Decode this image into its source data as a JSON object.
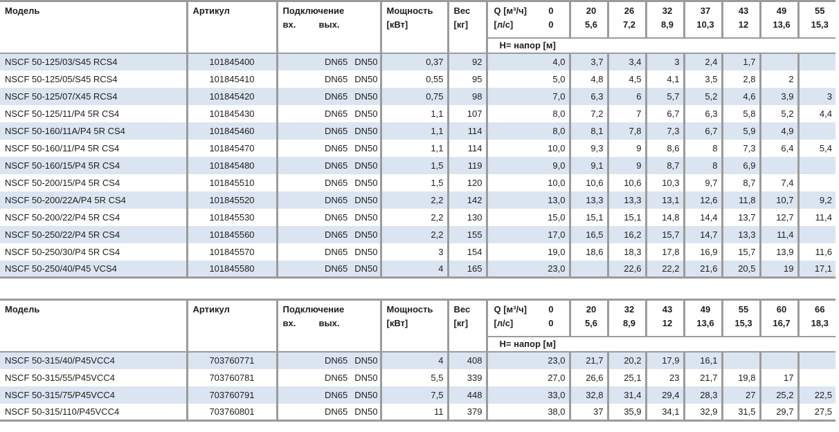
{
  "colors": {
    "row_alt": "#dbe5f1",
    "border": "#9b9b9b",
    "text": "#1d1d1b"
  },
  "tables": [
    {
      "headers": {
        "model": "Модель",
        "article": "Артикул",
        "connection": "Подключение",
        "inlet": "вх.",
        "outlet": "вых.",
        "power_l1": "Мощность",
        "power_l2": "[кВт]",
        "weight_l1": "Вес",
        "weight_l2": "[кг]",
        "q_m3h": "Q [м³/ч]",
        "q_m3h_zero": "0",
        "q_ls": "[л/с]",
        "q_ls_zero": "0",
        "head_label": "H= напор [м]"
      },
      "q_cols": [
        [
          "20",
          "5,6"
        ],
        [
          "26",
          "7,2"
        ],
        [
          "32",
          "8,9"
        ],
        [
          "37",
          "10,3"
        ],
        [
          "43",
          "12"
        ],
        [
          "49",
          "13,6"
        ],
        [
          "55",
          "15,3"
        ]
      ],
      "rows": [
        {
          "model": "NSCF 50-125/03/S45 RCS4",
          "article": "101845400",
          "inlet": "DN65",
          "outlet": "DN50",
          "power": "0,37",
          "weight": "92",
          "h": [
            "4,0",
            "3,7",
            "3,4",
            "3",
            "2,4",
            "1,7",
            "",
            ""
          ]
        },
        {
          "model": "NSCF 50-125/05/S45 RCS4",
          "article": "101845410",
          "inlet": "DN65",
          "outlet": "DN50",
          "power": "0,55",
          "weight": "95",
          "h": [
            "5,0",
            "4,8",
            "4,5",
            "4,1",
            "3,5",
            "2,8",
            "2",
            ""
          ]
        },
        {
          "model": "NSCF 50-125/07/X45 RCS4",
          "article": "101845420",
          "inlet": "DN65",
          "outlet": "DN50",
          "power": "0,75",
          "weight": "98",
          "h": [
            "7,0",
            "6,3",
            "6",
            "5,7",
            "5,2",
            "4,6",
            "3,9",
            "3"
          ]
        },
        {
          "model": "NSCF 50-125/11/P4 5R CS4",
          "article": "101845430",
          "inlet": "DN65",
          "outlet": "DN50",
          "power": "1,1",
          "weight": "107",
          "h": [
            "8,0",
            "7,2",
            "7",
            "6,7",
            "6,3",
            "5,8",
            "5,2",
            "4,4"
          ]
        },
        {
          "model": "NSCF 50-160/11A/P4 5R CS4",
          "article": "101845460",
          "inlet": "DN65",
          "outlet": "DN50",
          "power": "1,1",
          "weight": "114",
          "h": [
            "8,0",
            "8,1",
            "7,8",
            "7,3",
            "6,7",
            "5,9",
            "4,9",
            ""
          ]
        },
        {
          "model": "NSCF 50-160/11/P4 5R CS4",
          "article": "101845470",
          "inlet": "DN65",
          "outlet": "DN50",
          "power": "1,1",
          "weight": "114",
          "h": [
            "10,0",
            "9,3",
            "9",
            "8,6",
            "8",
            "7,3",
            "6,4",
            "5,4"
          ]
        },
        {
          "model": "NSCF 50-160/15/P4 5R CS4",
          "article": "101845480",
          "inlet": "DN65",
          "outlet": "DN50",
          "power": "1,5",
          "weight": "119",
          "h": [
            "9,0",
            "9,1",
            "9",
            "8,7",
            "8",
            "6,9",
            "",
            ""
          ]
        },
        {
          "model": "NSCF 50-200/15/P4 5R CS4",
          "article": "101845510",
          "inlet": "DN65",
          "outlet": "DN50",
          "power": "1,5",
          "weight": "120",
          "h": [
            "10,0",
            "10,6",
            "10,6",
            "10,3",
            "9,7",
            "8,7",
            "7,4",
            ""
          ]
        },
        {
          "model": "NSCF 50-200/22A/P4 5R CS4",
          "article": "101845520",
          "inlet": "DN65",
          "outlet": "DN50",
          "power": "2,2",
          "weight": "142",
          "h": [
            "13,0",
            "13,3",
            "13,3",
            "13,1",
            "12,6",
            "11,8",
            "10,7",
            "9,2"
          ]
        },
        {
          "model": "NSCF 50-200/22/P4 5R CS4",
          "article": "101845530",
          "inlet": "DN65",
          "outlet": "DN50",
          "power": "2,2",
          "weight": "130",
          "h": [
            "15,0",
            "15,1",
            "15,1",
            "14,8",
            "14,4",
            "13,7",
            "12,7",
            "11,4"
          ]
        },
        {
          "model": "NSCF 50-250/22/P4 5R CS4",
          "article": "101845560",
          "inlet": "DN65",
          "outlet": "DN50",
          "power": "2,2",
          "weight": "155",
          "h": [
            "17,0",
            "16,5",
            "16,2",
            "15,7",
            "14,7",
            "13,3",
            "11,4",
            ""
          ]
        },
        {
          "model": "NSCF 50-250/30/P4 5R CS4",
          "article": "101845570",
          "inlet": "DN65",
          "outlet": "DN50",
          "power": "3",
          "weight": "154",
          "h": [
            "19,0",
            "18,6",
            "18,3",
            "17,8",
            "16,9",
            "15,7",
            "13,9",
            "11,6"
          ]
        },
        {
          "model": "NSCF 50-250/40/P45 VCS4",
          "article": "101845580",
          "inlet": "DN65",
          "outlet": "DN50",
          "power": "4",
          "weight": "165",
          "h": [
            "23,0",
            "",
            "22,6",
            "22,2",
            "21,6",
            "20,5",
            "19",
            "17,1"
          ]
        }
      ]
    },
    {
      "headers": {
        "model": "Модель",
        "article": "Артикул",
        "connection": "Подключение",
        "inlet": "вх.",
        "outlet": "вых.",
        "power_l1": "Мощность",
        "power_l2": "[кВт]",
        "weight_l1": "Вес",
        "weight_l2": "[кг]",
        "q_m3h": "Q [м³/ч]",
        "q_m3h_zero": "0",
        "q_ls": "[л/с]",
        "q_ls_zero": "0",
        "head_label": "H= напор [м]"
      },
      "q_cols": [
        [
          "20",
          "5,6"
        ],
        [
          "32",
          "8,9"
        ],
        [
          "43",
          "12"
        ],
        [
          "49",
          "13,6"
        ],
        [
          "55",
          "15,3"
        ],
        [
          "60",
          "16,7"
        ],
        [
          "66",
          "18,3"
        ]
      ],
      "rows": [
        {
          "model": "NSCF 50-315/40/P45VCC4",
          "article": "703760771",
          "inlet": "DN65",
          "outlet": "DN50",
          "power": "4",
          "weight": "408",
          "h": [
            "23,0",
            "21,7",
            "20,2",
            "17,9",
            "16,1",
            "",
            "",
            ""
          ]
        },
        {
          "model": "NSCF 50-315/55/P45VCC4",
          "article": "703760781",
          "inlet": "DN65",
          "outlet": "DN50",
          "power": "5,5",
          "weight": "339",
          "h": [
            "27,0",
            "26,6",
            "25,1",
            "23",
            "21,7",
            "19,8",
            "17",
            ""
          ]
        },
        {
          "model": "NSCF 50-315/75/P45VCC4",
          "article": "703760791",
          "inlet": "DN65",
          "outlet": "DN50",
          "power": "7,5",
          "weight": "448",
          "h": [
            "33,0",
            "32,8",
            "31,4",
            "29,4",
            "28,3",
            "27",
            "25,2",
            "22,5"
          ]
        },
        {
          "model": "NSCF 50-315/110/P45VCC4",
          "article": "703760801",
          "inlet": "DN65",
          "outlet": "DN50",
          "power": "11",
          "weight": "379",
          "h": [
            "38,0",
            "37",
            "35,9",
            "34,1",
            "32,9",
            "31,5",
            "29,7",
            "27,5"
          ]
        }
      ]
    }
  ]
}
